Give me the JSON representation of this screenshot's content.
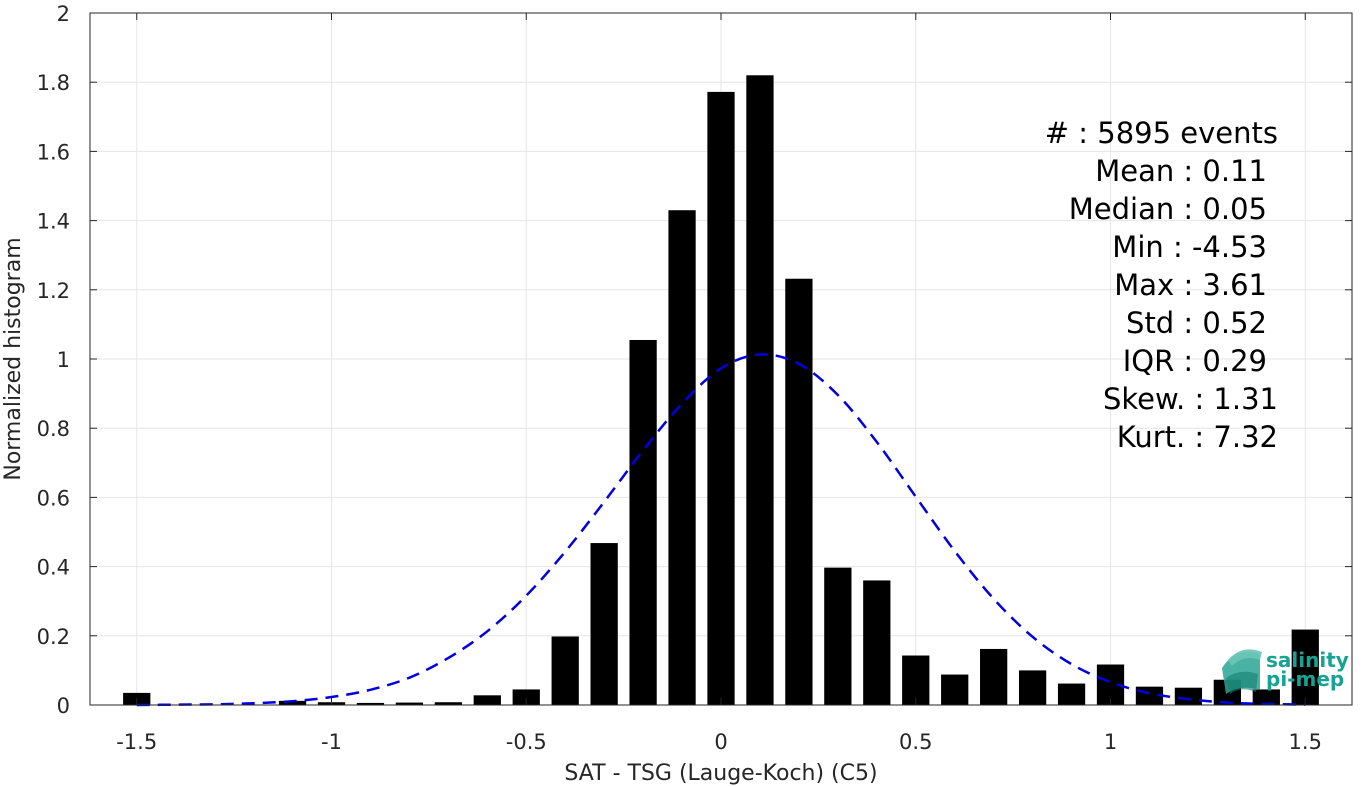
{
  "chart_data": {
    "type": "bar",
    "xlabel": "SAT - TSG (Lauge-Koch) (C5)",
    "ylabel": "Normalized histogram",
    "xlim": [
      -1.62,
      1.62
    ],
    "ylim": [
      0,
      2
    ],
    "grid": true,
    "x_ticks": [
      -1.5,
      -1,
      -0.5,
      0,
      0.5,
      1,
      1.5
    ],
    "x_tick_labels": [
      "-1.5",
      "-1",
      "-0.5",
      "0",
      "0.5",
      "1",
      "1.5"
    ],
    "y_ticks": [
      0,
      0.2,
      0.4,
      0.6,
      0.8,
      1,
      1.2,
      1.4,
      1.6,
      1.8,
      2
    ],
    "y_tick_labels": [
      "0",
      "0.2",
      "0.4",
      "0.6",
      "0.8",
      "1",
      "1.2",
      "1.4",
      "1.6",
      "1.8",
      "2"
    ],
    "bar_width": 0.07,
    "bars": {
      "x": [
        -1.5,
        -1.1,
        -1.0,
        -0.9,
        -0.8,
        -0.7,
        -0.6,
        -0.5,
        -0.4,
        -0.3,
        -0.2,
        -0.1,
        0.0,
        0.1,
        0.2,
        0.3,
        0.4,
        0.5,
        0.6,
        0.7,
        0.8,
        0.9,
        1.0,
        1.1,
        1.2,
        1.3,
        1.4,
        1.5
      ],
      "values": [
        0.035,
        0.012,
        0.008,
        0.006,
        0.007,
        0.008,
        0.028,
        0.045,
        0.198,
        0.468,
        1.055,
        1.43,
        1.772,
        1.82,
        1.232,
        0.397,
        0.36,
        0.143,
        0.088,
        0.162,
        0.1,
        0.062,
        0.117,
        0.053,
        0.05,
        0.073,
        0.045,
        0.218
      ],
      "color": "#000000"
    },
    "fit_curve": {
      "style": "dashed",
      "color": "#0000e0",
      "x": [
        -1.5,
        -1.4,
        -1.3,
        -1.2,
        -1.1,
        -1.0,
        -0.9,
        -0.8,
        -0.7,
        -0.6,
        -0.5,
        -0.4,
        -0.3,
        -0.2,
        -0.1,
        0.0,
        0.1,
        0.2,
        0.3,
        0.4,
        0.5,
        0.6,
        0.7,
        0.8,
        0.9,
        1.0,
        1.1,
        1.2,
        1.3,
        1.4,
        1.5
      ],
      "y": [
        0.0,
        0.001,
        0.002,
        0.005,
        0.011,
        0.023,
        0.044,
        0.079,
        0.136,
        0.213,
        0.316,
        0.443,
        0.587,
        0.736,
        0.871,
        0.973,
        1.013,
        0.986,
        0.896,
        0.76,
        0.602,
        0.445,
        0.307,
        0.197,
        0.118,
        0.066,
        0.034,
        0.017,
        0.007,
        0.003,
        0.001
      ]
    }
  },
  "stats": [
    {
      "label": "#  : 5895 events"
    },
    {
      "label": "Mean : 0.11"
    },
    {
      "label": "Median : 0.05"
    },
    {
      "label": "Min : -4.53"
    },
    {
      "label": "Max : 3.61"
    },
    {
      "label": "Std : 0.52"
    },
    {
      "label": "IQR : 0.29"
    },
    {
      "label": "Skew. : 1.31"
    },
    {
      "label": "Kurt. : 7.32"
    }
  ],
  "logo": {
    "line1": "salinity",
    "line2": "pi-mep",
    "color": "#17a394"
  }
}
